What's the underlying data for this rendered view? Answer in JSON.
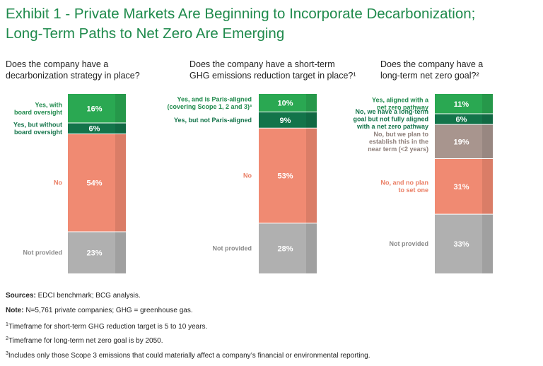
{
  "title": {
    "line1": "Exhibit 1 - Private Markets Are Beginning to Incorporate Decarbonization;",
    "line2": "Long-Term Paths to Net Zero Are Emerging"
  },
  "colors": {
    "green": "#2aa852",
    "dark_green": "#13744a",
    "salmon": "#f08a72",
    "mauve": "#a8958e",
    "grey": "#b0b0b0",
    "label_green": "#1f8a4c",
    "label_dark_green": "#13744a",
    "label_salmon": "#ea7d63",
    "label_mauve": "#8e7f7a",
    "label_grey": "#8a8a8a"
  },
  "chart_data": [
    {
      "type": "bar",
      "stacked": true,
      "question": [
        "Does the company have a",
        "decarbonization strategy in place?"
      ],
      "segments": [
        {
          "label": [
            "Yes, with",
            "board oversight"
          ],
          "value": 16,
          "value_label": "16%",
          "color_key": "green",
          "label_color_key": "label_green"
        },
        {
          "label": [
            "Yes, but without",
            "board oversight"
          ],
          "value": 6,
          "value_label": "6%",
          "color_key": "dark_green",
          "label_color_key": "label_dark_green"
        },
        {
          "label": [
            "No"
          ],
          "value": 54,
          "value_label": "54%",
          "color_key": "salmon",
          "label_color_key": "label_salmon"
        },
        {
          "label": [
            "Not provided"
          ],
          "value": 23,
          "value_label": "23%",
          "color_key": "grey",
          "label_color_key": "label_grey"
        }
      ]
    },
    {
      "type": "bar",
      "stacked": true,
      "question": [
        "Does the company have a short-term",
        "GHG emissions reduction target in place?¹"
      ],
      "segments": [
        {
          "label": [
            "Yes, and is Paris-aligned",
            "(covering Scope 1, 2 and 3)³"
          ],
          "value": 10,
          "value_label": "10%",
          "color_key": "green",
          "label_color_key": "label_green"
        },
        {
          "label": [
            "Yes, but not Paris-aligned"
          ],
          "value": 9,
          "value_label": "9%",
          "color_key": "dark_green",
          "label_color_key": "label_dark_green"
        },
        {
          "label": [
            "No"
          ],
          "value": 53,
          "value_label": "53%",
          "color_key": "salmon",
          "label_color_key": "label_salmon"
        },
        {
          "label": [
            "Not provided"
          ],
          "value": 28,
          "value_label": "28%",
          "color_key": "grey",
          "label_color_key": "label_grey"
        }
      ]
    },
    {
      "type": "bar",
      "stacked": true,
      "question": [
        "Does the company have a",
        "long-term net zero goal?²"
      ],
      "segments": [
        {
          "label": [
            "Yes, aligned with a",
            "net zero pathway"
          ],
          "value": 11,
          "value_label": "11%",
          "color_key": "green",
          "label_color_key": "label_green"
        },
        {
          "label": [
            "No, we have a long-term",
            "goal but not fully aligned",
            "with a net zero pathway"
          ],
          "value": 6,
          "value_label": "6%",
          "color_key": "dark_green",
          "label_color_key": "label_dark_green"
        },
        {
          "label": [
            "No, but we plan to",
            "establish this in the",
            "near term (<2 years)"
          ],
          "value": 19,
          "value_label": "19%",
          "color_key": "mauve",
          "label_color_key": "label_mauve"
        },
        {
          "label": [
            "No, and no plan",
            "to set one"
          ],
          "value": 31,
          "value_label": "31%",
          "color_key": "salmon",
          "label_color_key": "label_salmon"
        },
        {
          "label": [
            "Not provided"
          ],
          "value": 33,
          "value_label": "33%",
          "color_key": "grey",
          "label_color_key": "label_grey"
        }
      ]
    }
  ],
  "footer": {
    "sources_label": "Sources:",
    "sources_text": "EDCI benchmark; BCG analysis.",
    "note_label": "Note:",
    "note_text": "N=5,761 private companies; GHG = greenhouse gas.",
    "fn1_mark": "1",
    "fn1_text": "Timeframe for short-term GHG reduction target is 5 to 10 years.",
    "fn2_mark": "2",
    "fn2_text": "Timeframe for long-term net zero goal is by 2050.",
    "fn3_mark": "3",
    "fn3_text": "Includes only those Scope 3 emissions that could materially affect a company’s financial or environmental reporting."
  }
}
